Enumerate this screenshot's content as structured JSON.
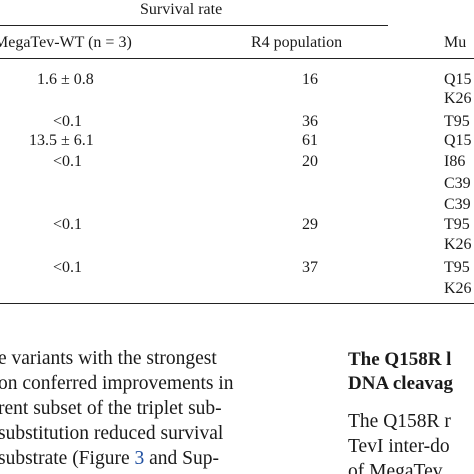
{
  "table": {
    "spanner": "Survival rate",
    "col_headers": [
      "MegaTev-WT (n = 3)",
      "R4 population",
      "Mu"
    ],
    "rows": [
      {
        "survival": "1.6 ± 0.8",
        "r4": "16",
        "mut": [
          "Q15",
          "K26"
        ]
      },
      {
        "survival": "<0.1",
        "r4": "36",
        "mut": [
          "T95"
        ]
      },
      {
        "survival": "13.5 ± 6.1",
        "r4": "61",
        "mut": [
          "Q15"
        ]
      },
      {
        "survival": "<0.1",
        "r4": "20",
        "mut": [
          "I86",
          "C39",
          "C39"
        ]
      },
      {
        "survival": "<0.1",
        "r4": "29",
        "mut": [
          "T95",
          "K26"
        ]
      },
      {
        "survival": "<0.1",
        "r4": "37",
        "mut": [
          "T95",
          "K26"
        ]
      }
    ]
  },
  "left_column": {
    "lines": [
      "e variants with the strongest",
      "on conferred improvements in",
      "rent subset of the triplet sub-",
      "substitution reduced survival",
      "substrate (Figure ",
      "Figure_ref_placeholder"
    ],
    "line5_figure_num": "3",
    "line5_tail": " and Sup-"
  },
  "right_column": {
    "heading_lines": [
      "The Q158R l",
      "DNA cleavag"
    ],
    "lines": [
      "The Q158R r",
      "TevI inter-do",
      "of MegaTev"
    ]
  }
}
